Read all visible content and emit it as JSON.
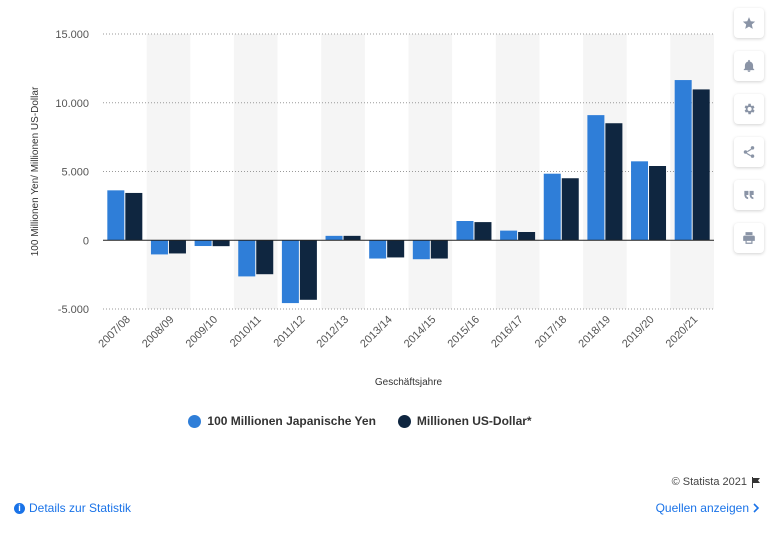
{
  "chart_data": {
    "type": "bar",
    "categories": [
      "2007/08",
      "2008/09",
      "2009/10",
      "2010/11",
      "2011/12",
      "2012/13",
      "2013/14",
      "2014/15",
      "2015/16",
      "2016/17",
      "2017/18",
      "2018/19",
      "2019/20",
      "2020/21"
    ],
    "series": [
      {
        "name": "100 Millionen Japanische Yen",
        "color": "#2f7ed8",
        "values": [
          3630,
          -1030,
          -420,
          -2630,
          -4570,
          320,
          -1330,
          -1380,
          1400,
          700,
          4840,
          9100,
          5740,
          11650
        ]
      },
      {
        "name": "Millionen US-Dollar*",
        "color": "#0f2640",
        "values": [
          3440,
          -960,
          -430,
          -2470,
          -4330,
          320,
          -1250,
          -1330,
          1320,
          600,
          4510,
          8510,
          5400,
          10970
        ]
      }
    ],
    "xlabel": "Geschäftsjahre",
    "ylabel": "100 Millionen Yen/ Millionen US-Dollar",
    "ylim": [
      -5000,
      15000
    ],
    "yticks": [
      -5000,
      0,
      5000,
      10000,
      15000
    ],
    "ytick_labels": [
      "-5.000",
      "0",
      "5.000",
      "10.000",
      "15.000"
    ],
    "grid": true,
    "legend_position": "bottom"
  },
  "legend": {
    "items": [
      {
        "label": "100 Millionen Japanische Yen",
        "color": "#2f7ed8"
      },
      {
        "label": "Millionen US-Dollar*",
        "color": "#0f2640"
      }
    ]
  },
  "sidebar": {
    "icons": [
      "star-icon",
      "bell-icon",
      "gear-icon",
      "share-icon",
      "quote-icon",
      "print-icon"
    ]
  },
  "footer": {
    "copyright": "© Statista 2021",
    "details_link": "Details zur Statistik",
    "sources_link": "Quellen anzeigen"
  }
}
